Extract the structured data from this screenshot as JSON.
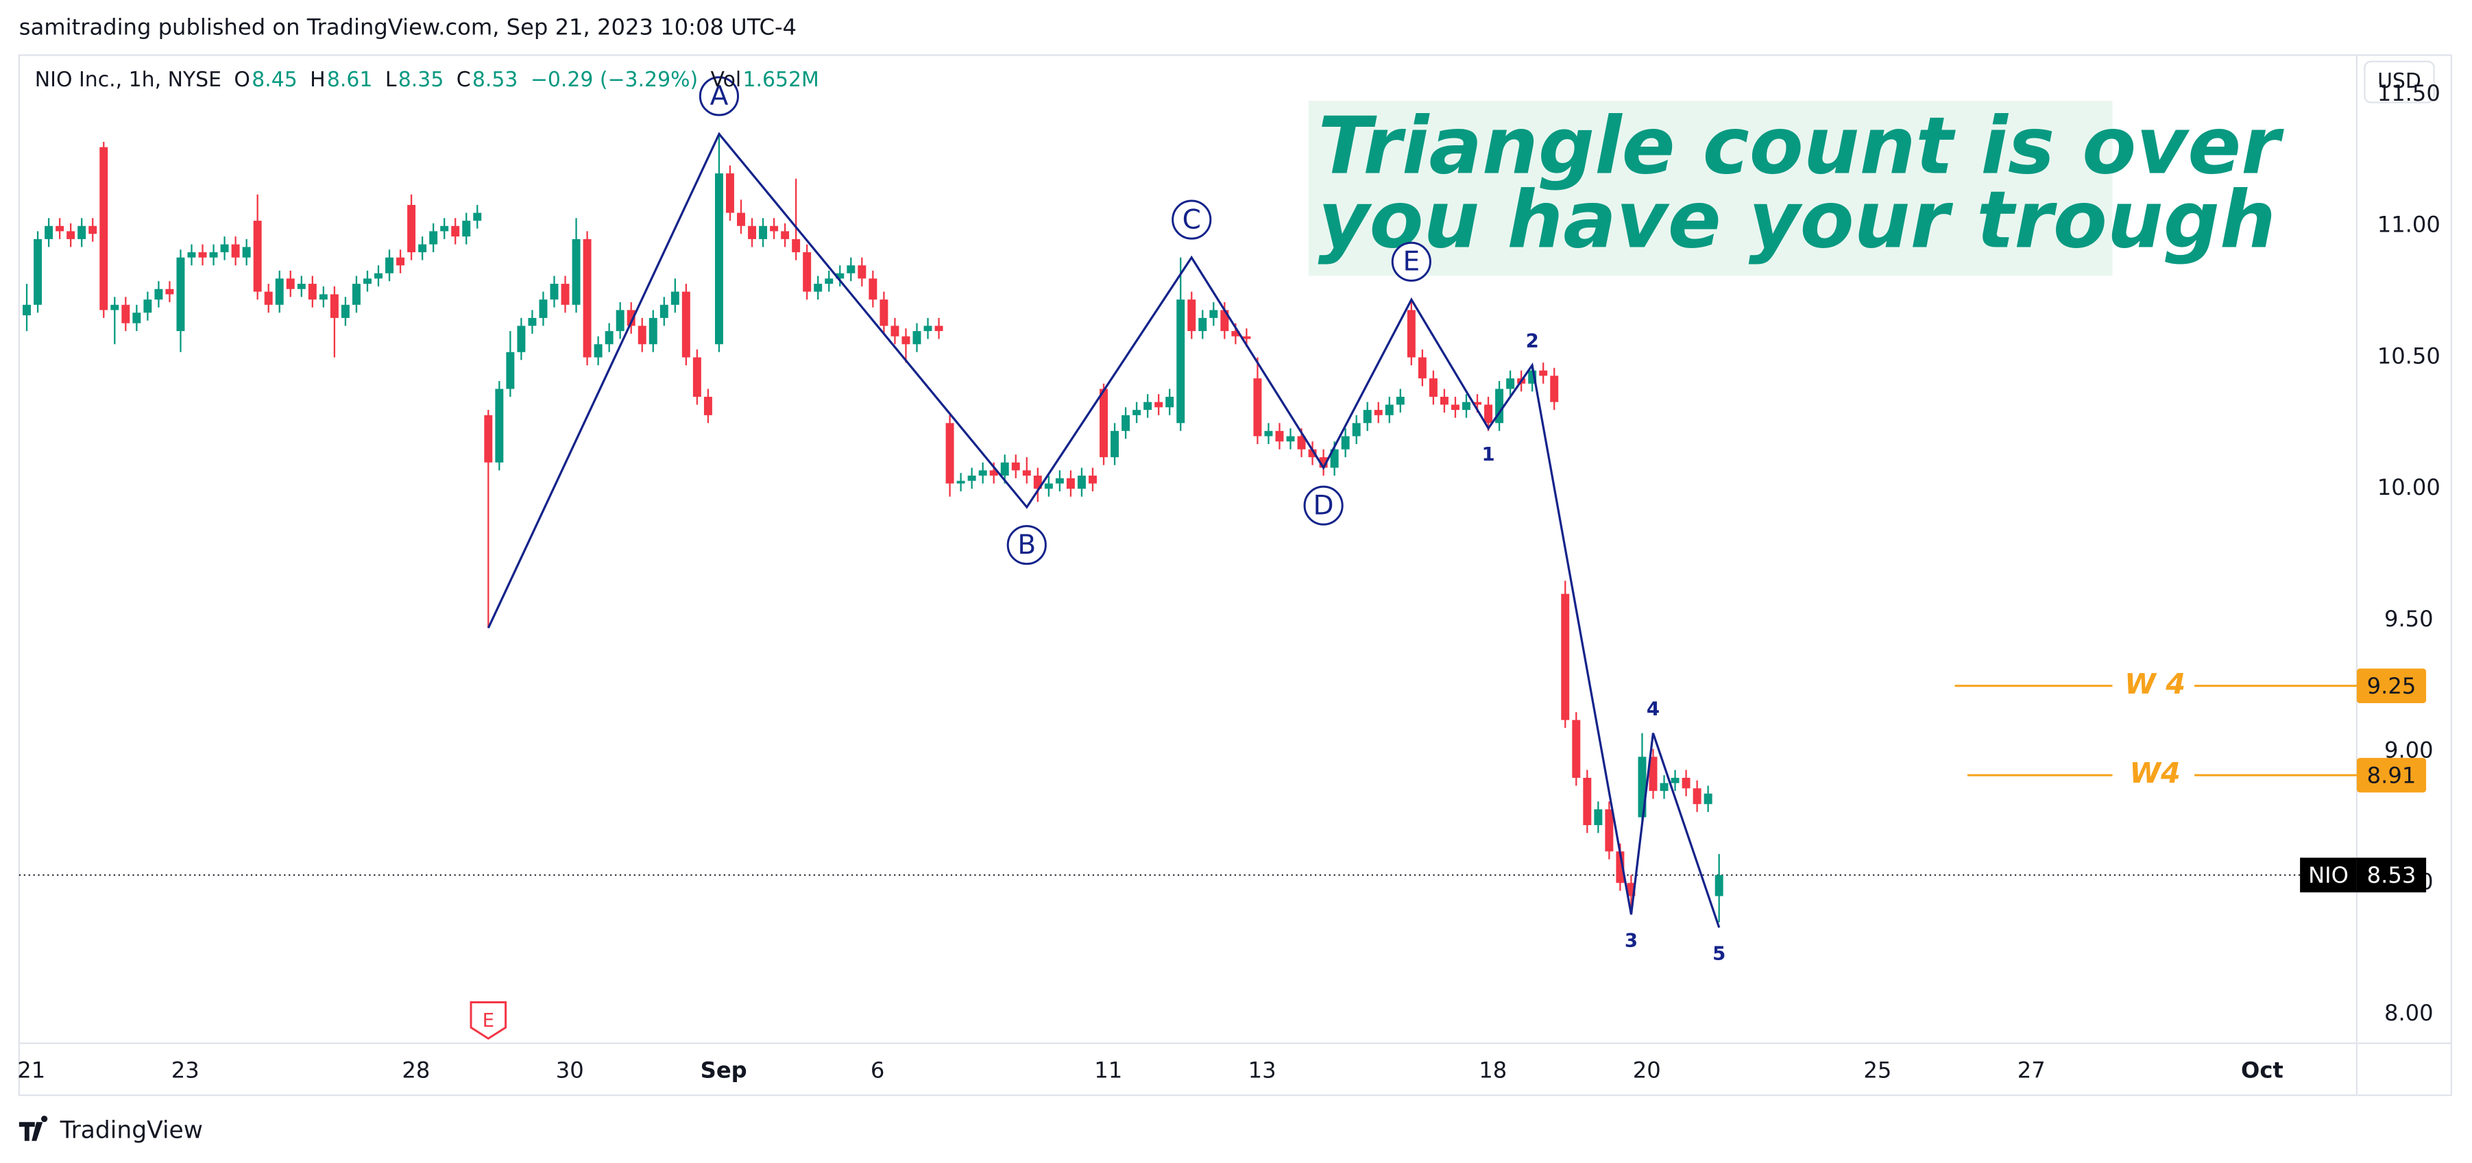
{
  "published": "samitrading published on TradingView.com, Sep 21, 2023 10:08 UTC-4",
  "brand": "TradingView",
  "currency": "USD",
  "chart_data": {
    "type": "candlestick",
    "symbol": "NIO Inc., 1h, NYSE",
    "quote": [
      {
        "k": "O",
        "v": "8.45"
      },
      {
        "k": "H",
        "v": "8.61"
      },
      {
        "k": "L",
        "v": "8.35"
      },
      {
        "k": "C",
        "v": "8.53"
      }
    ],
    "change": "−0.29 (−3.29%)",
    "volume": {
      "k": "Vol",
      "v": "1.652M"
    },
    "up_color": "#089981",
    "down_color": "#f23645",
    "ylim": [
      7.89,
      11.65
    ],
    "yticks": [
      {
        "value": 8,
        "label": "8.00"
      },
      {
        "value": 8.5,
        "label": "8.50"
      },
      {
        "value": 9,
        "label": "9.00"
      },
      {
        "value": 9.5,
        "label": "9.50"
      },
      {
        "value": 10,
        "label": "10.00"
      },
      {
        "value": 10.5,
        "label": "10.50"
      },
      {
        "value": 11,
        "label": "11.00"
      },
      {
        "value": 11.5,
        "label": "11.50"
      }
    ],
    "xlim": [
      -0.16,
      30.23
    ],
    "xticks": [
      {
        "value": 0,
        "label": "21"
      },
      {
        "value": 2,
        "label": "23"
      },
      {
        "value": 5,
        "label": "28"
      },
      {
        "value": 7,
        "label": "30"
      },
      {
        "value": 9,
        "label": "Sep"
      },
      {
        "value": 11,
        "label": "6"
      },
      {
        "value": 14,
        "label": "11"
      },
      {
        "value": 16,
        "label": "13"
      },
      {
        "value": 19,
        "label": "18"
      },
      {
        "value": 21,
        "label": "20"
      },
      {
        "value": 24,
        "label": "25"
      },
      {
        "value": 26,
        "label": "27"
      },
      {
        "value": 29,
        "label": "Oct"
      }
    ],
    "grid": true,
    "ohlc": [
      [
        10.66,
        10.78,
        10.6,
        10.7
      ],
      [
        10.7,
        10.98,
        10.67,
        10.95
      ],
      [
        10.95,
        11.03,
        10.92,
        11.0
      ],
      [
        11.0,
        11.03,
        10.95,
        10.98
      ],
      [
        10.98,
        11.01,
        10.92,
        10.95
      ],
      [
        10.95,
        11.03,
        10.92,
        11.0
      ],
      [
        11.0,
        11.03,
        10.94,
        10.97
      ],
      [
        11.3,
        11.32,
        10.65,
        10.68
      ],
      [
        10.68,
        10.73,
        10.55,
        10.7
      ],
      [
        10.7,
        10.73,
        10.6,
        10.63
      ],
      [
        10.63,
        10.7,
        10.6,
        10.67
      ],
      [
        10.67,
        10.75,
        10.64,
        10.72
      ],
      [
        10.72,
        10.79,
        10.69,
        10.76
      ],
      [
        10.76,
        10.79,
        10.71,
        10.74
      ],
      [
        10.6,
        10.91,
        10.52,
        10.88
      ],
      [
        10.88,
        10.93,
        10.85,
        10.9
      ],
      [
        10.9,
        10.93,
        10.85,
        10.88
      ],
      [
        10.88,
        10.93,
        10.85,
        10.9
      ],
      [
        10.9,
        10.96,
        10.87,
        10.93
      ],
      [
        10.93,
        10.96,
        10.85,
        10.88
      ],
      [
        10.88,
        10.95,
        10.85,
        10.92
      ],
      [
        11.02,
        11.12,
        10.72,
        10.75
      ],
      [
        10.75,
        10.78,
        10.67,
        10.7
      ],
      [
        10.7,
        10.83,
        10.67,
        10.8
      ],
      [
        10.8,
        10.83,
        10.73,
        10.76
      ],
      [
        10.76,
        10.81,
        10.73,
        10.78
      ],
      [
        10.78,
        10.81,
        10.69,
        10.72
      ],
      [
        10.72,
        10.77,
        10.69,
        10.74
      ],
      [
        10.74,
        10.77,
        10.5,
        10.65
      ],
      [
        10.65,
        10.73,
        10.62,
        10.7
      ],
      [
        10.7,
        10.81,
        10.67,
        10.78
      ],
      [
        10.78,
        10.83,
        10.75,
        10.8
      ],
      [
        10.8,
        10.85,
        10.77,
        10.82
      ],
      [
        10.82,
        10.91,
        10.79,
        10.88
      ],
      [
        10.88,
        10.91,
        10.82,
        10.85
      ],
      [
        11.08,
        11.12,
        10.87,
        10.9
      ],
      [
        10.9,
        10.96,
        10.87,
        10.93
      ],
      [
        10.93,
        11.01,
        10.9,
        10.98
      ],
      [
        10.98,
        11.03,
        10.95,
        11.0
      ],
      [
        11.0,
        11.03,
        10.93,
        10.96
      ],
      [
        10.96,
        11.05,
        10.93,
        11.02
      ],
      [
        11.02,
        11.08,
        10.99,
        11.05
      ],
      [
        10.28,
        10.3,
        9.47,
        10.1
      ],
      [
        10.1,
        10.41,
        10.07,
        10.38
      ],
      [
        10.38,
        10.6,
        10.35,
        10.52
      ],
      [
        10.52,
        10.65,
        10.49,
        10.62
      ],
      [
        10.62,
        10.68,
        10.59,
        10.65
      ],
      [
        10.65,
        10.75,
        10.62,
        10.72
      ],
      [
        10.72,
        10.81,
        10.69,
        10.78
      ],
      [
        10.78,
        10.81,
        10.67,
        10.7
      ],
      [
        10.7,
        11.03,
        10.67,
        10.95
      ],
      [
        10.95,
        10.98,
        10.47,
        10.5
      ],
      [
        10.5,
        10.58,
        10.47,
        10.55
      ],
      [
        10.55,
        10.63,
        10.52,
        10.6
      ],
      [
        10.6,
        10.71,
        10.57,
        10.68
      ],
      [
        10.68,
        10.71,
        10.59,
        10.62
      ],
      [
        10.62,
        10.65,
        10.52,
        10.55
      ],
      [
        10.55,
        10.68,
        10.52,
        10.65
      ],
      [
        10.65,
        10.73,
        10.62,
        10.7
      ],
      [
        10.7,
        10.8,
        10.67,
        10.75
      ],
      [
        10.75,
        10.78,
        10.47,
        10.5
      ],
      [
        10.5,
        10.53,
        10.32,
        10.35
      ],
      [
        10.35,
        10.38,
        10.25,
        10.28
      ],
      [
        10.55,
        11.35,
        10.52,
        11.2
      ],
      [
        11.2,
        11.23,
        11.02,
        11.05
      ],
      [
        11.05,
        11.1,
        10.97,
        11.0
      ],
      [
        11.0,
        11.03,
        10.92,
        10.95
      ],
      [
        10.95,
        11.03,
        10.92,
        11.0
      ],
      [
        11.0,
        11.03,
        10.95,
        10.98
      ],
      [
        10.98,
        11.01,
        10.92,
        10.95
      ],
      [
        10.95,
        11.18,
        10.87,
        10.9
      ],
      [
        10.9,
        10.93,
        10.72,
        10.75
      ],
      [
        10.75,
        10.81,
        10.72,
        10.78
      ],
      [
        10.78,
        10.83,
        10.75,
        10.8
      ],
      [
        10.8,
        10.85,
        10.77,
        10.82
      ],
      [
        10.82,
        10.88,
        10.79,
        10.85
      ],
      [
        10.85,
        10.88,
        10.77,
        10.8
      ],
      [
        10.8,
        10.83,
        10.69,
        10.72
      ],
      [
        10.72,
        10.75,
        10.59,
        10.62
      ],
      [
        10.62,
        10.65,
        10.55,
        10.58
      ],
      [
        10.58,
        10.61,
        10.48,
        10.55
      ],
      [
        10.55,
        10.63,
        10.52,
        10.6
      ],
      [
        10.6,
        10.65,
        10.57,
        10.62
      ],
      [
        10.62,
        10.65,
        10.57,
        10.6
      ],
      [
        10.25,
        10.28,
        9.97,
        10.02
      ],
      [
        10.02,
        10.06,
        9.99,
        10.03
      ],
      [
        10.03,
        10.08,
        10.0,
        10.05
      ],
      [
        10.05,
        10.1,
        10.02,
        10.07
      ],
      [
        10.07,
        10.1,
        10.02,
        10.05
      ],
      [
        10.05,
        10.13,
        10.02,
        10.1
      ],
      [
        10.1,
        10.13,
        10.04,
        10.07
      ],
      [
        10.07,
        10.12,
        10.02,
        10.05
      ],
      [
        10.05,
        10.08,
        9.95,
        10.0
      ],
      [
        10.0,
        10.05,
        9.97,
        10.02
      ],
      [
        10.02,
        10.07,
        9.99,
        10.04
      ],
      [
        10.04,
        10.07,
        9.97,
        10.0
      ],
      [
        10.0,
        10.08,
        9.97,
        10.05
      ],
      [
        10.05,
        10.08,
        9.99,
        10.02
      ],
      [
        10.38,
        10.4,
        10.09,
        10.12
      ],
      [
        10.12,
        10.25,
        10.09,
        10.22
      ],
      [
        10.22,
        10.31,
        10.19,
        10.28
      ],
      [
        10.28,
        10.33,
        10.25,
        10.3
      ],
      [
        10.3,
        10.36,
        10.27,
        10.33
      ],
      [
        10.33,
        10.36,
        10.28,
        10.31
      ],
      [
        10.31,
        10.38,
        10.28,
        10.35
      ],
      [
        10.25,
        10.88,
        10.22,
        10.72
      ],
      [
        10.72,
        10.75,
        10.57,
        10.6
      ],
      [
        10.6,
        10.68,
        10.57,
        10.65
      ],
      [
        10.65,
        10.71,
        10.62,
        10.68
      ],
      [
        10.68,
        10.71,
        10.57,
        10.6
      ],
      [
        10.6,
        10.63,
        10.55,
        10.58
      ],
      [
        10.58,
        10.61,
        10.54,
        10.57
      ],
      [
        10.42,
        10.5,
        10.17,
        10.2
      ],
      [
        10.2,
        10.25,
        10.17,
        10.22
      ],
      [
        10.22,
        10.25,
        10.15,
        10.18
      ],
      [
        10.18,
        10.23,
        10.15,
        10.2
      ],
      [
        10.2,
        10.23,
        10.12,
        10.15
      ],
      [
        10.15,
        10.18,
        10.09,
        10.12
      ],
      [
        10.12,
        10.15,
        10.05,
        10.08
      ],
      [
        10.08,
        10.18,
        10.05,
        10.15
      ],
      [
        10.15,
        10.23,
        10.12,
        10.2
      ],
      [
        10.2,
        10.28,
        10.17,
        10.25
      ],
      [
        10.25,
        10.33,
        10.22,
        10.3
      ],
      [
        10.3,
        10.33,
        10.25,
        10.28
      ],
      [
        10.28,
        10.35,
        10.25,
        10.32
      ],
      [
        10.32,
        10.38,
        10.29,
        10.35
      ],
      [
        10.68,
        10.72,
        10.47,
        10.5
      ],
      [
        10.5,
        10.53,
        10.39,
        10.42
      ],
      [
        10.42,
        10.45,
        10.32,
        10.35
      ],
      [
        10.35,
        10.38,
        10.29,
        10.32
      ],
      [
        10.32,
        10.35,
        10.27,
        10.3
      ],
      [
        10.3,
        10.36,
        10.27,
        10.33
      ],
      [
        10.33,
        10.36,
        10.29,
        10.32
      ],
      [
        10.32,
        10.35,
        10.22,
        10.25
      ],
      [
        10.25,
        10.41,
        10.22,
        10.38
      ],
      [
        10.38,
        10.45,
        10.35,
        10.42
      ],
      [
        10.42,
        10.45,
        10.37,
        10.4
      ],
      [
        10.4,
        10.47,
        10.37,
        10.45
      ],
      [
        10.45,
        10.48,
        10.4,
        10.43
      ],
      [
        10.43,
        10.46,
        10.3,
        10.33
      ],
      [
        9.6,
        9.65,
        9.09,
        9.12
      ],
      [
        9.12,
        9.15,
        8.87,
        8.9
      ],
      [
        8.9,
        8.93,
        8.69,
        8.72
      ],
      [
        8.72,
        8.81,
        8.69,
        8.78
      ],
      [
        8.78,
        8.81,
        8.59,
        8.62
      ],
      [
        8.62,
        8.65,
        8.47,
        8.5
      ],
      [
        8.5,
        8.53,
        8.38,
        8.45
      ],
      [
        8.75,
        9.07,
        8.72,
        8.98
      ],
      [
        8.98,
        9.01,
        8.82,
        8.85
      ],
      [
        8.85,
        8.91,
        8.82,
        8.88
      ],
      [
        8.88,
        8.93,
        8.85,
        8.9
      ],
      [
        8.9,
        8.93,
        8.83,
        8.86
      ],
      [
        8.86,
        8.89,
        8.77,
        8.8
      ],
      [
        8.8,
        8.87,
        8.77,
        8.84
      ],
      [
        8.45,
        8.61,
        8.35,
        8.53
      ]
    ],
    "wave": {
      "color": "#14238a",
      "points": [
        [
          42,
          9.47
        ],
        [
          63,
          11.35
        ],
        [
          91,
          9.93
        ],
        [
          106,
          10.88
        ],
        [
          118,
          10.08
        ],
        [
          126,
          10.72
        ],
        [
          133,
          10.23
        ],
        [
          137,
          10.47
        ],
        [
          146,
          8.38
        ],
        [
          148,
          9.07
        ],
        [
          154,
          8.33
        ]
      ],
      "labels": [
        null,
        "A",
        "B",
        "C",
        "D",
        "E",
        "1",
        "2",
        "3",
        "4",
        "5"
      ]
    },
    "levels": [
      {
        "label": "W 4",
        "value": 9.25
      },
      {
        "label": "W4",
        "value": 8.91
      }
    ],
    "level_color": "#f7a21b",
    "last_price": {
      "name": "NIO",
      "value": 8.53
    },
    "earnings_marker": "E",
    "annotation": {
      "lines": [
        "Triangle count is over",
        "you have your trough"
      ],
      "color": "#089981"
    }
  }
}
